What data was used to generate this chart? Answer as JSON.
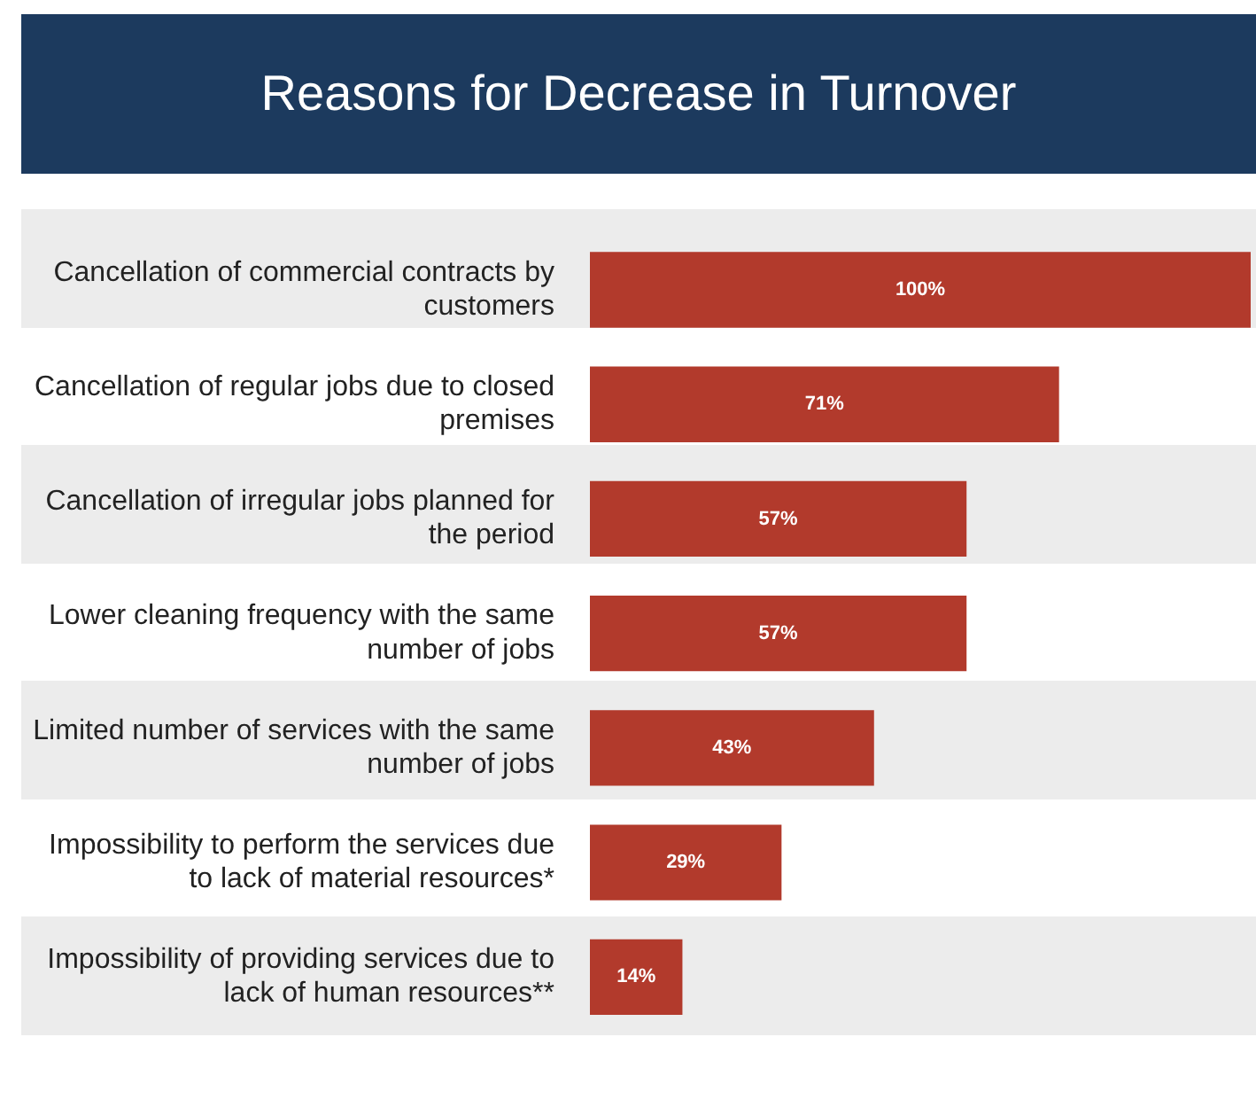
{
  "chart_data": {
    "type": "bar",
    "orientation": "horizontal",
    "title": "Reasons for Decrease in Turnover",
    "categories": [
      "Cancellation of commercial contracts by customers",
      "Cancellation of regular jobs due to closed premises",
      "Cancellation of irregular jobs planned for the period",
      "Lower cleaning frequency with the same number of jobs",
      "Limited number of services with the same number of jobs",
      "Impossibility to perform the services due to lack of material resources*",
      "Impossibility of providing services due to lack of human resources**"
    ],
    "values": [
      100,
      71,
      57,
      57,
      43,
      29,
      14
    ],
    "value_labels": [
      "100%",
      "71%",
      "57%",
      "57%",
      "43%",
      "29%",
      "14%"
    ],
    "color": "#b23a2c",
    "legend": false
  }
}
